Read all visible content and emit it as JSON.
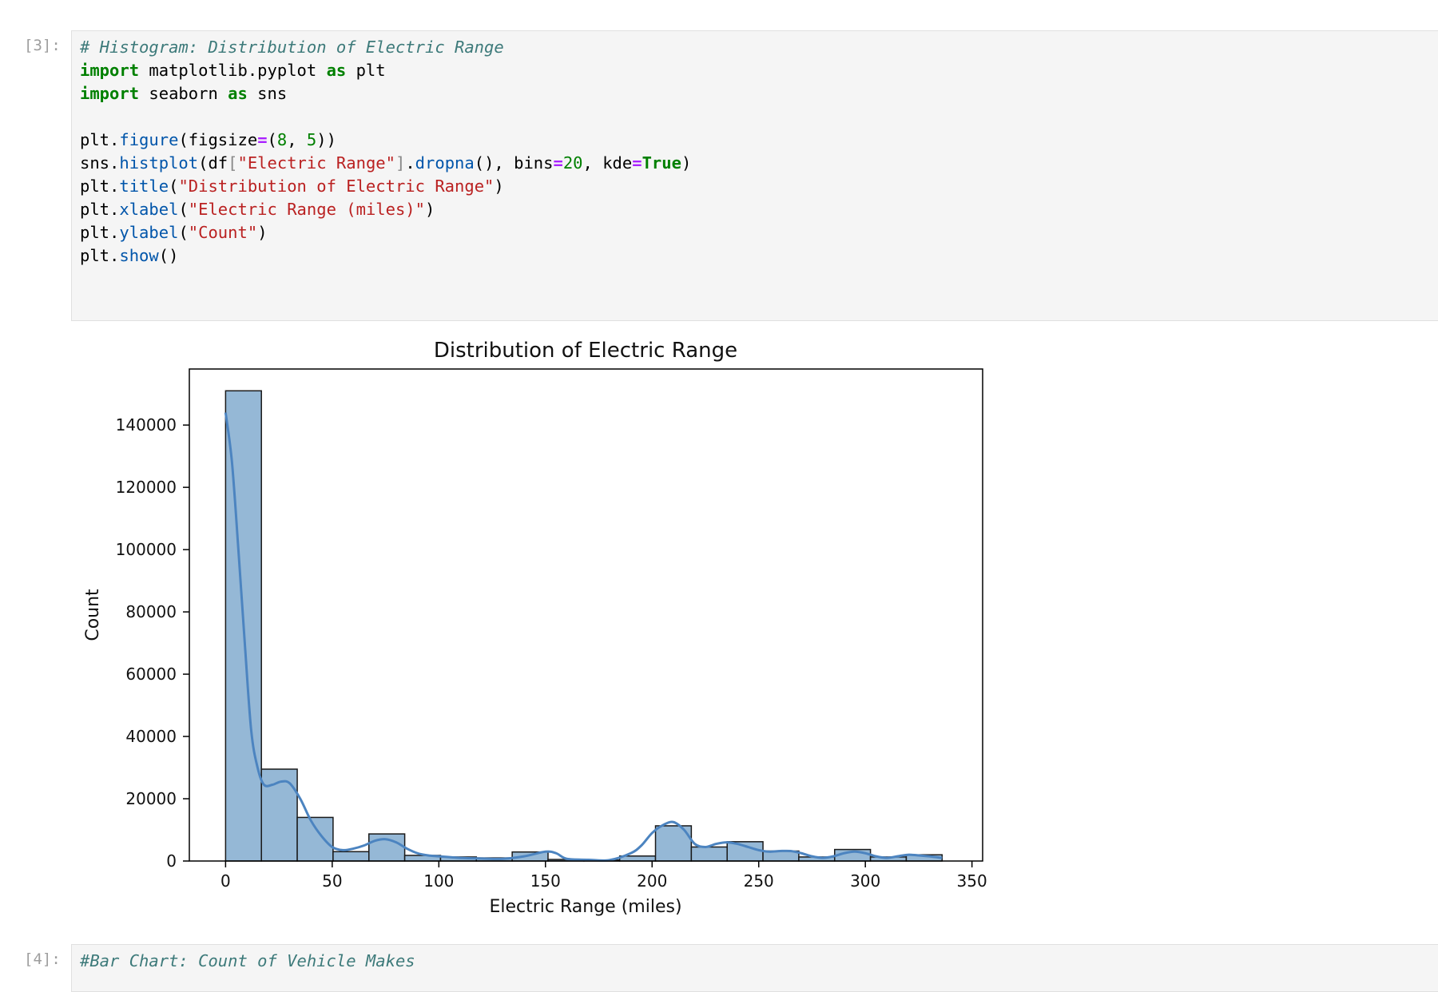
{
  "cell3": {
    "prompt": "[3]:",
    "lines": {
      "l1": "# Histogram: Distribution of Electric Range",
      "l2a": "import",
      "l2b": " matplotlib.pyplot ",
      "l2c": "as",
      "l2d": " plt",
      "l3a": "import",
      "l3b": " seaborn ",
      "l3c": "as",
      "l3d": " sns",
      "l5a": "plt.",
      "l5b": "figure",
      "l5c": "(figsize",
      "l5d": "=",
      "l5e": "(",
      "l5f": "8",
      "l5g": ", ",
      "l5h": "5",
      "l5i": "))",
      "l6a": "sns.",
      "l6b": "histplot",
      "l6c": "(df",
      "l6d": "[",
      "l6e": "\"Electric Range\"",
      "l6f": "]",
      "l6g": ".",
      "l6h": "dropna",
      "l6i": "(), bins",
      "l6j": "=",
      "l6k": "20",
      "l6l": ", kde",
      "l6m": "=",
      "l6n": "True",
      "l6o": ")",
      "l7a": "plt.",
      "l7b": "title",
      "l7c": "(",
      "l7d": "\"Distribution of Electric Range\"",
      "l7e": ")",
      "l8a": "plt.",
      "l8b": "xlabel",
      "l8c": "(",
      "l8d": "\"Electric Range (miles)\"",
      "l8e": ")",
      "l9a": "plt.",
      "l9b": "ylabel",
      "l9c": "(",
      "l9d": "\"Count\"",
      "l9e": ")",
      "l10a": "plt.",
      "l10b": "show",
      "l10c": "()"
    }
  },
  "cell4": {
    "prompt": "[4]:",
    "first_line": "#Bar Chart: Count of Vehicle Makes"
  },
  "chart_data": {
    "type": "bar",
    "title": "Distribution of Electric Range",
    "xlabel": "Electric Range (miles)",
    "ylabel": "Count",
    "xlim": [
      -17,
      355
    ],
    "ylim": [
      0,
      158000
    ],
    "xticks": [
      0,
      50,
      100,
      150,
      200,
      250,
      300,
      350
    ],
    "yticks": [
      0,
      20000,
      40000,
      60000,
      80000,
      100000,
      120000,
      140000
    ],
    "bin_edges": [
      0,
      16.8,
      33.6,
      50.4,
      67.2,
      84,
      100.8,
      117.6,
      134.4,
      151.2,
      168,
      184.8,
      201.6,
      218.4,
      235.2,
      252,
      268.8,
      285.6,
      302.4,
      319.2,
      336
    ],
    "counts": [
      151000,
      29500,
      14000,
      3000,
      8700,
      1800,
      1300,
      1000,
      2900,
      500,
      300,
      1600,
      11300,
      4500,
      6200,
      3200,
      1300,
      3700,
      1300,
      2000
    ],
    "kde": {
      "x": [
        0,
        3,
        6,
        9,
        12,
        15,
        18,
        22,
        26,
        30,
        35,
        40,
        45,
        50,
        55,
        60,
        65,
        70,
        75,
        80,
        85,
        90,
        95,
        100,
        110,
        120,
        130,
        140,
        150,
        155,
        160,
        170,
        180,
        190,
        195,
        200,
        205,
        210,
        215,
        220,
        225,
        230,
        235,
        240,
        245,
        250,
        255,
        260,
        265,
        270,
        275,
        280,
        285,
        290,
        295,
        300,
        305,
        310,
        315,
        320,
        325,
        330,
        336
      ],
      "y": [
        144000,
        128000,
        100000,
        70000,
        42000,
        30000,
        24500,
        24500,
        25500,
        25000,
        20000,
        13000,
        8000,
        4500,
        3500,
        4000,
        5000,
        6500,
        7000,
        6000,
        4000,
        2500,
        1800,
        1500,
        1000,
        800,
        700,
        1500,
        3000,
        2500,
        700,
        400,
        300,
        2500,
        5000,
        9000,
        11500,
        12500,
        10000,
        5500,
        4500,
        5500,
        6000,
        5500,
        4500,
        3500,
        3000,
        3200,
        3200,
        2500,
        1500,
        1000,
        1500,
        2500,
        3000,
        2500,
        1500,
        1000,
        1500,
        2000,
        1800,
        1500,
        1000
      ]
    },
    "colors": {
      "bar_fill": "#95b8d6",
      "bar_edge": "#1a1a1a",
      "kde": "#4c84c0"
    }
  }
}
